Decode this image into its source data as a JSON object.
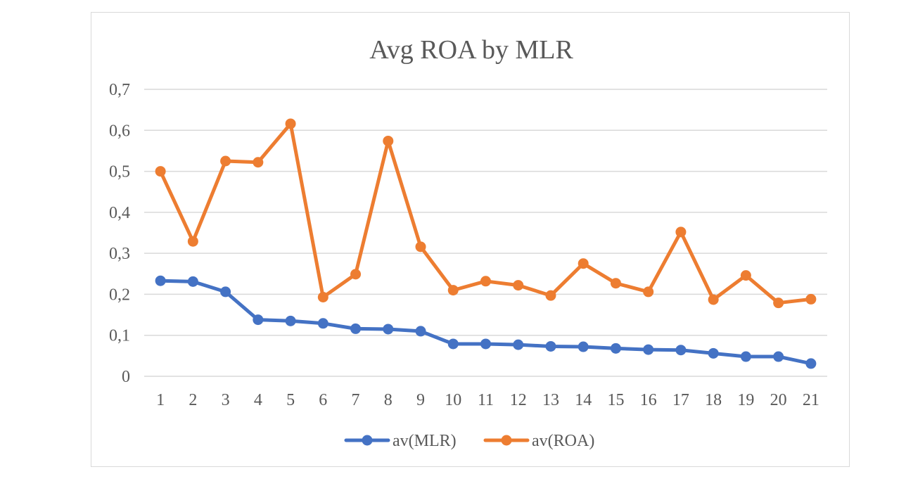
{
  "chart_data": {
    "type": "line",
    "title": "Avg ROA by MLR",
    "xlabel": "",
    "ylabel": "",
    "categories": [
      "1",
      "2",
      "3",
      "4",
      "5",
      "6",
      "7",
      "8",
      "9",
      "10",
      "11",
      "12",
      "13",
      "14",
      "15",
      "16",
      "17",
      "18",
      "19",
      "20",
      "21"
    ],
    "ylim": [
      0,
      0.7
    ],
    "yticks": [
      0,
      0.1,
      0.2,
      0.3,
      0.4,
      0.5,
      0.6,
      0.7
    ],
    "ytick_labels": [
      "0",
      "0,1",
      "0,2",
      "0,3",
      "0,4",
      "0,5",
      "0,6",
      "0,7"
    ],
    "grid": true,
    "legend_position": "bottom",
    "series": [
      {
        "name": "av(MLR)",
        "color": "#4472C4",
        "values": [
          0.233,
          0.231,
          0.206,
          0.138,
          0.135,
          0.129,
          0.116,
          0.115,
          0.11,
          0.079,
          0.079,
          0.077,
          0.073,
          0.072,
          0.068,
          0.065,
          0.064,
          0.056,
          0.048,
          0.048,
          0.031
        ]
      },
      {
        "name": "av(ROA)",
        "color": "#ED7D31",
        "values": [
          0.5,
          0.329,
          0.525,
          0.522,
          0.616,
          0.193,
          0.249,
          0.574,
          0.316,
          0.21,
          0.232,
          0.222,
          0.197,
          0.275,
          0.227,
          0.206,
          0.352,
          0.187,
          0.246,
          0.179,
          0.188
        ]
      }
    ]
  }
}
